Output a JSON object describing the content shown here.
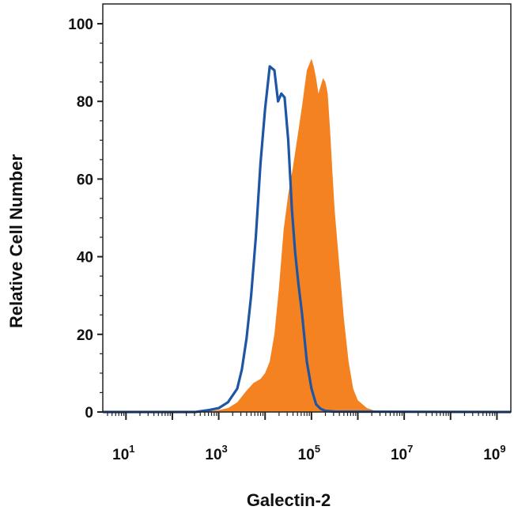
{
  "chart_data": {
    "type": "area",
    "xlabel": "Galectin-2",
    "ylabel": "Relative Cell Number",
    "xscale": "log",
    "xlim_log10": [
      0.5,
      9.3
    ],
    "ylim": [
      0,
      100
    ],
    "y_ticks": [
      0,
      20,
      40,
      60,
      80,
      100
    ],
    "x_ticks": [
      {
        "base": "10",
        "exp": "1",
        "log10": 1
      },
      {
        "base": "10",
        "exp": "3",
        "log10": 3
      },
      {
        "base": "10",
        "exp": "5",
        "log10": 5
      },
      {
        "base": "10",
        "exp": "7",
        "log10": 7
      },
      {
        "base": "10",
        "exp": "9",
        "log10": 9
      }
    ],
    "grid": false,
    "series": [
      {
        "style": "filled",
        "color": "#F58220",
        "x_log10": [
          0.5,
          2.5,
          2.8,
          3.0,
          3.2,
          3.4,
          3.6,
          3.75,
          3.9,
          4.0,
          4.1,
          4.2,
          4.3,
          4.4,
          4.5,
          4.6,
          4.7,
          4.8,
          4.9,
          5.0,
          5.05,
          5.1,
          5.15,
          5.2,
          5.25,
          5.3,
          5.35,
          5.4,
          5.45,
          5.5,
          5.6,
          5.7,
          5.8,
          5.9,
          6.0,
          6.2,
          6.4,
          9.3
        ],
        "y": [
          0,
          0,
          0.2,
          0.5,
          1,
          2.5,
          5.5,
          7.5,
          8.5,
          10,
          13,
          20,
          32,
          47,
          56,
          63,
          71,
          79,
          88,
          91,
          89,
          86,
          82,
          84,
          86,
          85,
          82,
          73,
          62,
          52,
          38,
          24,
          13,
          6,
          3,
          1,
          0.2,
          0
        ]
      },
      {
        "style": "line",
        "color": "#1E55A5",
        "x_log10": [
          0.5,
          2.5,
          2.8,
          3.0,
          3.2,
          3.4,
          3.5,
          3.6,
          3.7,
          3.8,
          3.9,
          4.0,
          4.1,
          4.2,
          4.28,
          4.35,
          4.42,
          4.5,
          4.58,
          4.65,
          4.72,
          4.8,
          4.9,
          5.0,
          5.1,
          5.2,
          5.3,
          5.5,
          9.3
        ],
        "y": [
          0,
          0,
          0.5,
          1,
          2.5,
          6,
          11,
          19,
          30,
          45,
          64,
          78,
          89,
          88,
          80,
          82,
          81,
          70,
          52,
          41,
          33,
          25,
          13,
          6,
          2,
          0.8,
          0.3,
          0.1,
          0
        ]
      }
    ]
  }
}
